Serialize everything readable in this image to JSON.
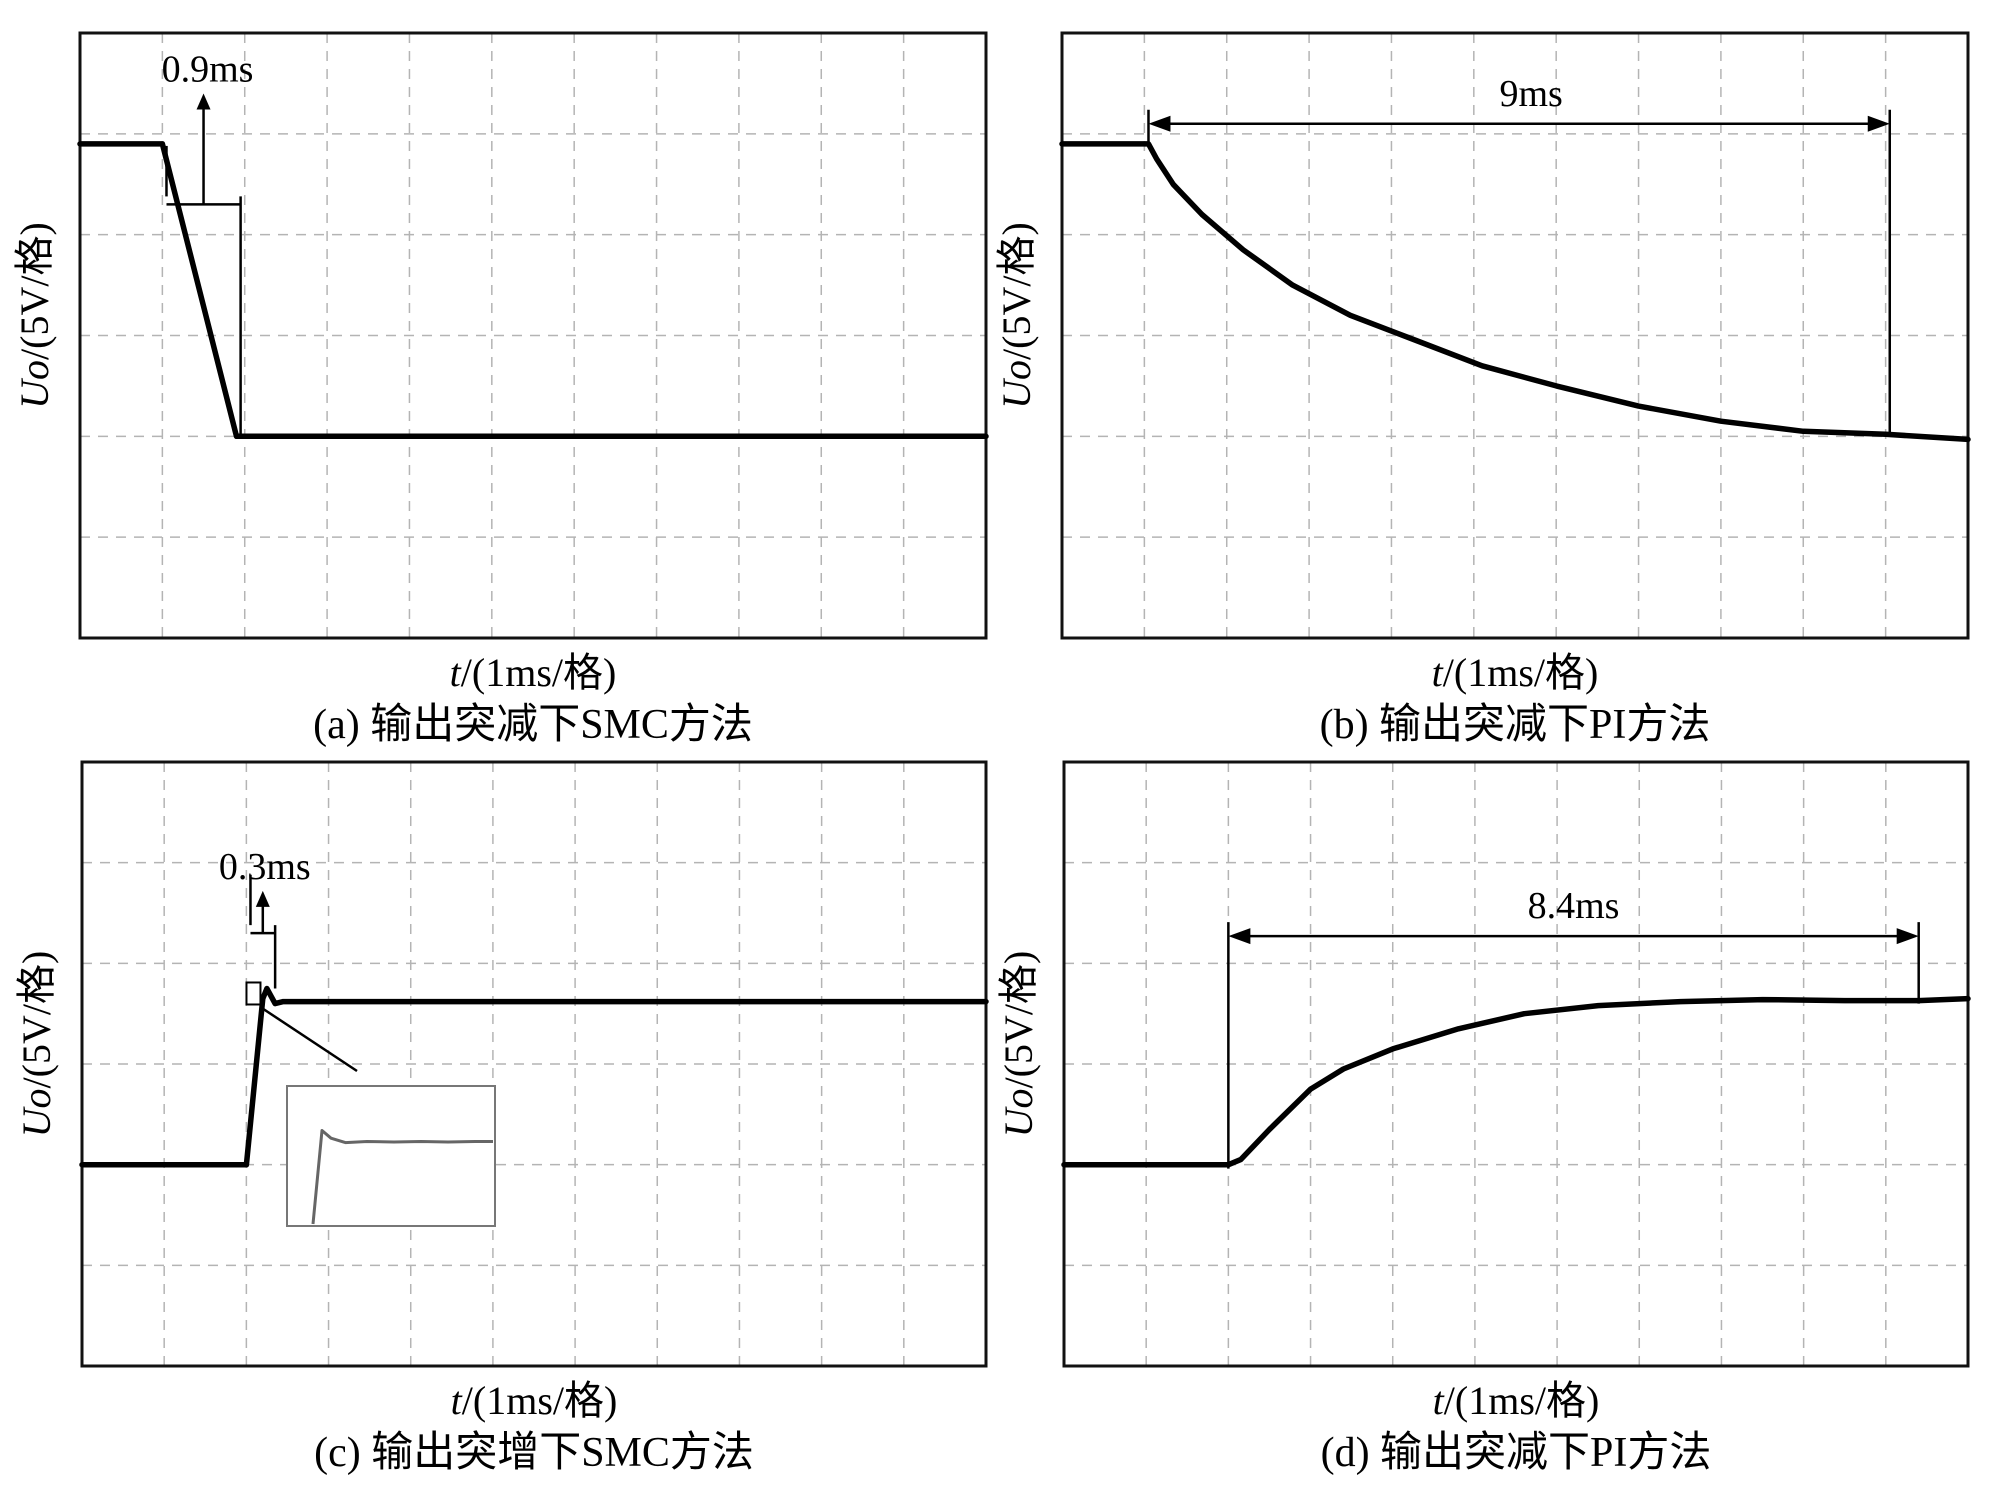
{
  "chart_data": [
    {
      "id": "a",
      "type": "line",
      "caption": "(a) 输出突减下SMC方法",
      "xlabel_italic": "t",
      "xlabel_rest": "/(1ms/格)",
      "ylabel_italic": "Uo",
      "ylabel_rest": "/(5V/格)",
      "xlim": [
        0,
        11
      ],
      "ylim": [
        0,
        6
      ],
      "grid": true,
      "x_units": "div",
      "y_units": "div",
      "series": [
        {
          "x": [
            0,
            1.0,
            1.9,
            11.0
          ],
          "y": [
            4.9,
            4.9,
            2.0,
            2.0
          ]
        }
      ],
      "annotation": {
        "label": "0.9ms",
        "x_start": 1.05,
        "x_end": 1.95,
        "bracket_y": 4.3,
        "arrow_tip_y": 5.4
      }
    },
    {
      "id": "b",
      "type": "line",
      "caption": "(b) 输出突减下PI方法",
      "xlabel_italic": "t",
      "xlabel_rest": "/(1ms/格)",
      "ylabel_italic": "Uo",
      "ylabel_rest": "/(5V/格)",
      "xlim": [
        0,
        11
      ],
      "ylim": [
        0,
        6
      ],
      "grid": true,
      "x_units": "div",
      "y_units": "div",
      "series": [
        {
          "x": [
            0,
            1.05,
            1.15,
            1.35,
            1.7,
            2.2,
            2.8,
            3.5,
            4.3,
            5.1,
            6.0,
            7.0,
            8.0,
            9.0,
            10.0,
            11.0
          ],
          "y": [
            4.9,
            4.9,
            4.75,
            4.5,
            4.2,
            3.85,
            3.5,
            3.2,
            2.95,
            2.7,
            2.5,
            2.3,
            2.15,
            2.05,
            2.02,
            1.97
          ]
        }
      ],
      "annotation": {
        "label": "9ms",
        "x_start": 1.05,
        "x_end": 10.05,
        "arrow_y": 5.1,
        "ref_bottom_y": 2.0
      }
    },
    {
      "id": "c",
      "type": "line",
      "caption": "(c) 输出突增下SMC方法",
      "xlabel_italic": "t",
      "xlabel_rest": "/(1ms/格)",
      "ylabel_italic": "Uo",
      "ylabel_rest": "/(5V/格)",
      "xlim": [
        0,
        11
      ],
      "ylim": [
        0,
        6
      ],
      "grid": true,
      "x_units": "div",
      "y_units": "div",
      "series": [
        {
          "x": [
            0,
            2.0,
            2.2,
            2.25,
            2.35,
            2.45,
            3.0,
            5.0,
            8.0,
            11.0
          ],
          "y": [
            2.0,
            2.0,
            3.65,
            3.75,
            3.6,
            3.62,
            3.62,
            3.62,
            3.62,
            3.62
          ]
        }
      ],
      "annotation": {
        "label": "0.3ms",
        "x_start": 2.05,
        "x_end": 2.35,
        "bracket_y": 4.3,
        "arrow_tip_y": 4.72
      },
      "inset": {
        "x": [
          0,
          0.05,
          0.1,
          0.18,
          0.3,
          0.45,
          0.6,
          0.75,
          0.9,
          1.0
        ],
        "y": [
          0,
          0.85,
          0.78,
          0.74,
          0.75,
          0.745,
          0.75,
          0.745,
          0.75,
          0.75
        ]
      }
    },
    {
      "id": "d",
      "type": "line",
      "caption": "(d) 输出突减下PI方法",
      "xlabel_italic": "t",
      "xlabel_rest": "/(1ms/格)",
      "ylabel_italic": "Uo",
      "ylabel_rest": "/(5V/格)",
      "xlim": [
        0,
        11
      ],
      "ylim": [
        0,
        6
      ],
      "grid": true,
      "x_units": "div",
      "y_units": "div",
      "series": [
        {
          "x": [
            0,
            2.0,
            2.15,
            2.5,
            3.0,
            3.4,
            4.0,
            4.8,
            5.6,
            6.5,
            7.5,
            8.5,
            9.5,
            10.4,
            11.0
          ],
          "y": [
            2.0,
            2.0,
            2.05,
            2.35,
            2.75,
            2.95,
            3.15,
            3.35,
            3.5,
            3.58,
            3.62,
            3.64,
            3.63,
            3.63,
            3.65
          ]
        }
      ],
      "annotation": {
        "label": "8.4ms",
        "x_start": 2.0,
        "x_end": 10.4,
        "arrow_y": 4.27,
        "ref_bottom_y": 2.0
      }
    }
  ]
}
